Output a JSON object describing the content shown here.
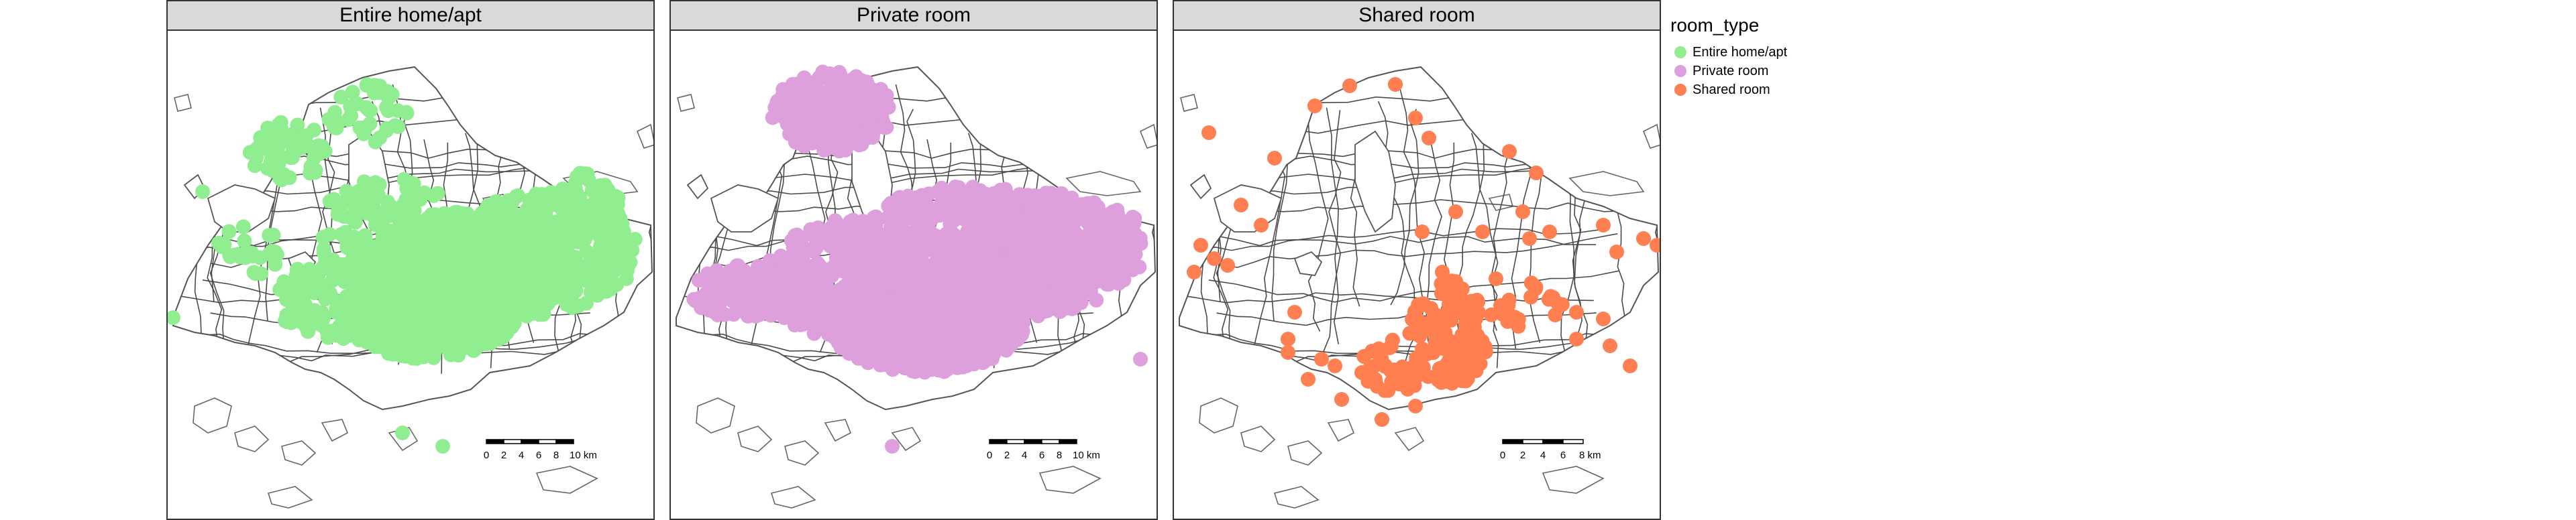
{
  "facets": [
    {
      "id": "entire",
      "label": "Entire home/apt",
      "color": "#90ee90",
      "scalebar": {
        "ticks": [
          "0",
          "2",
          "4",
          "6",
          "8",
          "10 km"
        ]
      }
    },
    {
      "id": "private",
      "label": "Private room",
      "color": "#dda0dd",
      "scalebar": {
        "ticks": [
          "0",
          "2",
          "4",
          "6",
          "8",
          "10 km"
        ]
      }
    },
    {
      "id": "shared",
      "label": "Shared room",
      "color": "#ff7f50",
      "scalebar": {
        "ticks": [
          "0",
          "2",
          "4",
          "6",
          "8 km"
        ]
      }
    }
  ],
  "legend": {
    "title": "room_type",
    "items": [
      {
        "label": "Entire home/apt",
        "color": "#90ee90"
      },
      {
        "label": "Private room",
        "color": "#dda0dd"
      },
      {
        "label": "Shared room",
        "color": "#ff7f50"
      }
    ]
  }
}
